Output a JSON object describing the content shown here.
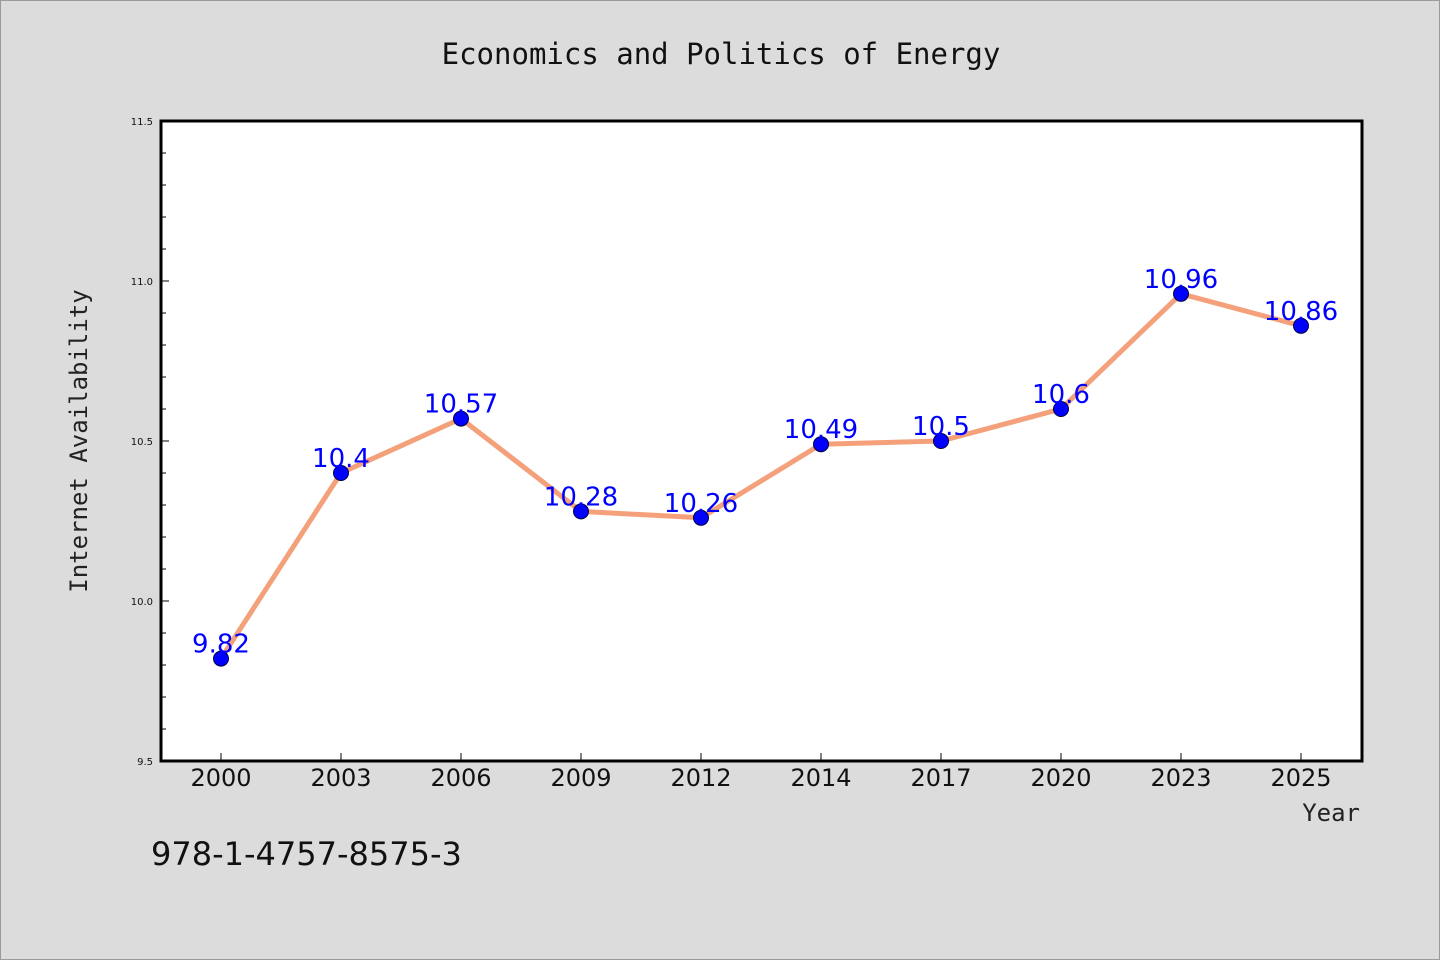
{
  "chart_data": {
    "type": "line",
    "title": "Economics and Politics of Energy",
    "xlabel": "Year",
    "ylabel": "Internet Availability",
    "categories": [
      "2000",
      "2003",
      "2006",
      "2009",
      "2012",
      "2014",
      "2017",
      "2020",
      "2023",
      "2025"
    ],
    "series": [
      {
        "values": [
          9.82,
          10.4,
          10.57,
          10.28,
          10.26,
          10.49,
          10.5,
          10.6,
          10.96,
          10.86
        ],
        "labels": [
          "9.82",
          "10.4",
          "10.57",
          "10.28",
          "10.26",
          "10.49",
          "10.5",
          "10.6",
          "10.96",
          "10.86"
        ]
      }
    ],
    "ylim": [
      9.5,
      11.5
    ],
    "yticks": [
      "9.5",
      "10.0",
      "10.5",
      "11.0",
      "11.5"
    ],
    "grid": false,
    "colors": {
      "line": "#f4a07a",
      "marker": "#0000ff",
      "label": "#0000ff",
      "background": "#dcdcdc",
      "plot_background": "#ffffff"
    }
  },
  "footer": {
    "isbn": "978-1-4757-8575-3"
  }
}
